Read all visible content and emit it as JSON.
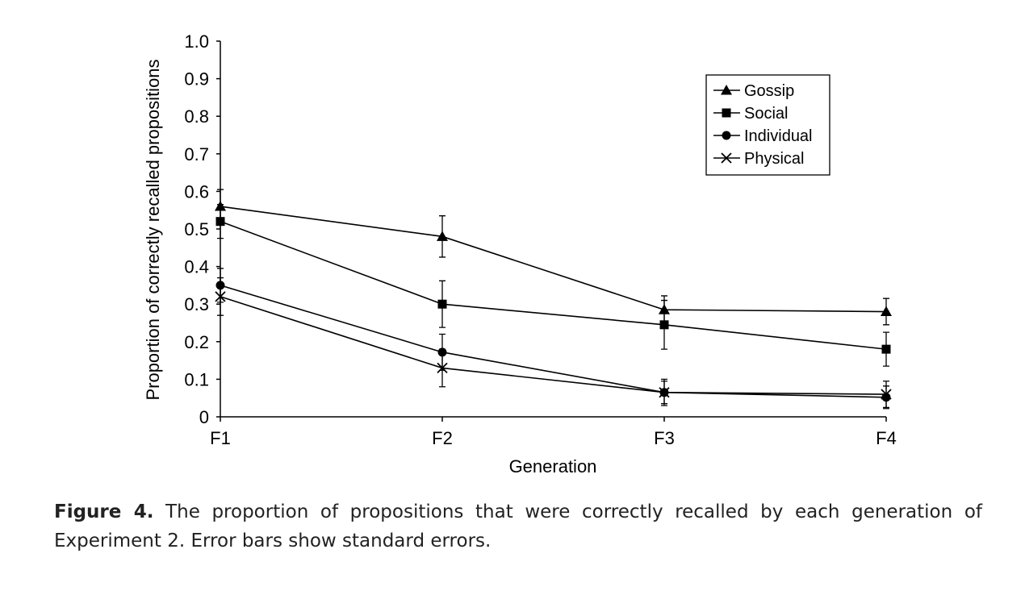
{
  "chart_data": {
    "type": "line",
    "xlabel": "Generation",
    "ylabel": "Proportion of correctly recalled propositions",
    "categories": [
      "F1",
      "F2",
      "F3",
      "F4"
    ],
    "ylim": [
      0,
      1
    ],
    "yticks": [
      "0",
      "0.1",
      "0.2",
      "0.3",
      "0.4",
      "0.5",
      "0.6",
      "0.7",
      "0.8",
      "0.9",
      "1.0"
    ],
    "legend_position": "top-right",
    "series": [
      {
        "name": "Gossip",
        "marker": "triangle",
        "values": [
          0.56,
          0.48,
          0.285,
          0.28
        ],
        "errors": [
          0.045,
          0.055,
          0.037,
          0.035
        ]
      },
      {
        "name": "Social",
        "marker": "square",
        "values": [
          0.52,
          0.3,
          0.245,
          0.18
        ],
        "errors": [
          0.045,
          0.062,
          0.065,
          0.045
        ]
      },
      {
        "name": "Individual",
        "marker": "circle",
        "values": [
          0.35,
          0.172,
          0.065,
          0.052
        ],
        "errors": [
          0.045,
          0.048,
          0.03,
          0.03
        ]
      },
      {
        "name": "Physical",
        "marker": "x",
        "values": [
          0.32,
          0.13,
          0.065,
          0.06
        ],
        "errors": [
          0.05,
          0.05,
          0.035,
          0.035
        ]
      }
    ]
  },
  "caption": {
    "label": "Figure 4.",
    "text": " The proportion of propositions that were correctly recalled by each generation of Experiment 2. Error bars show standard errors."
  }
}
